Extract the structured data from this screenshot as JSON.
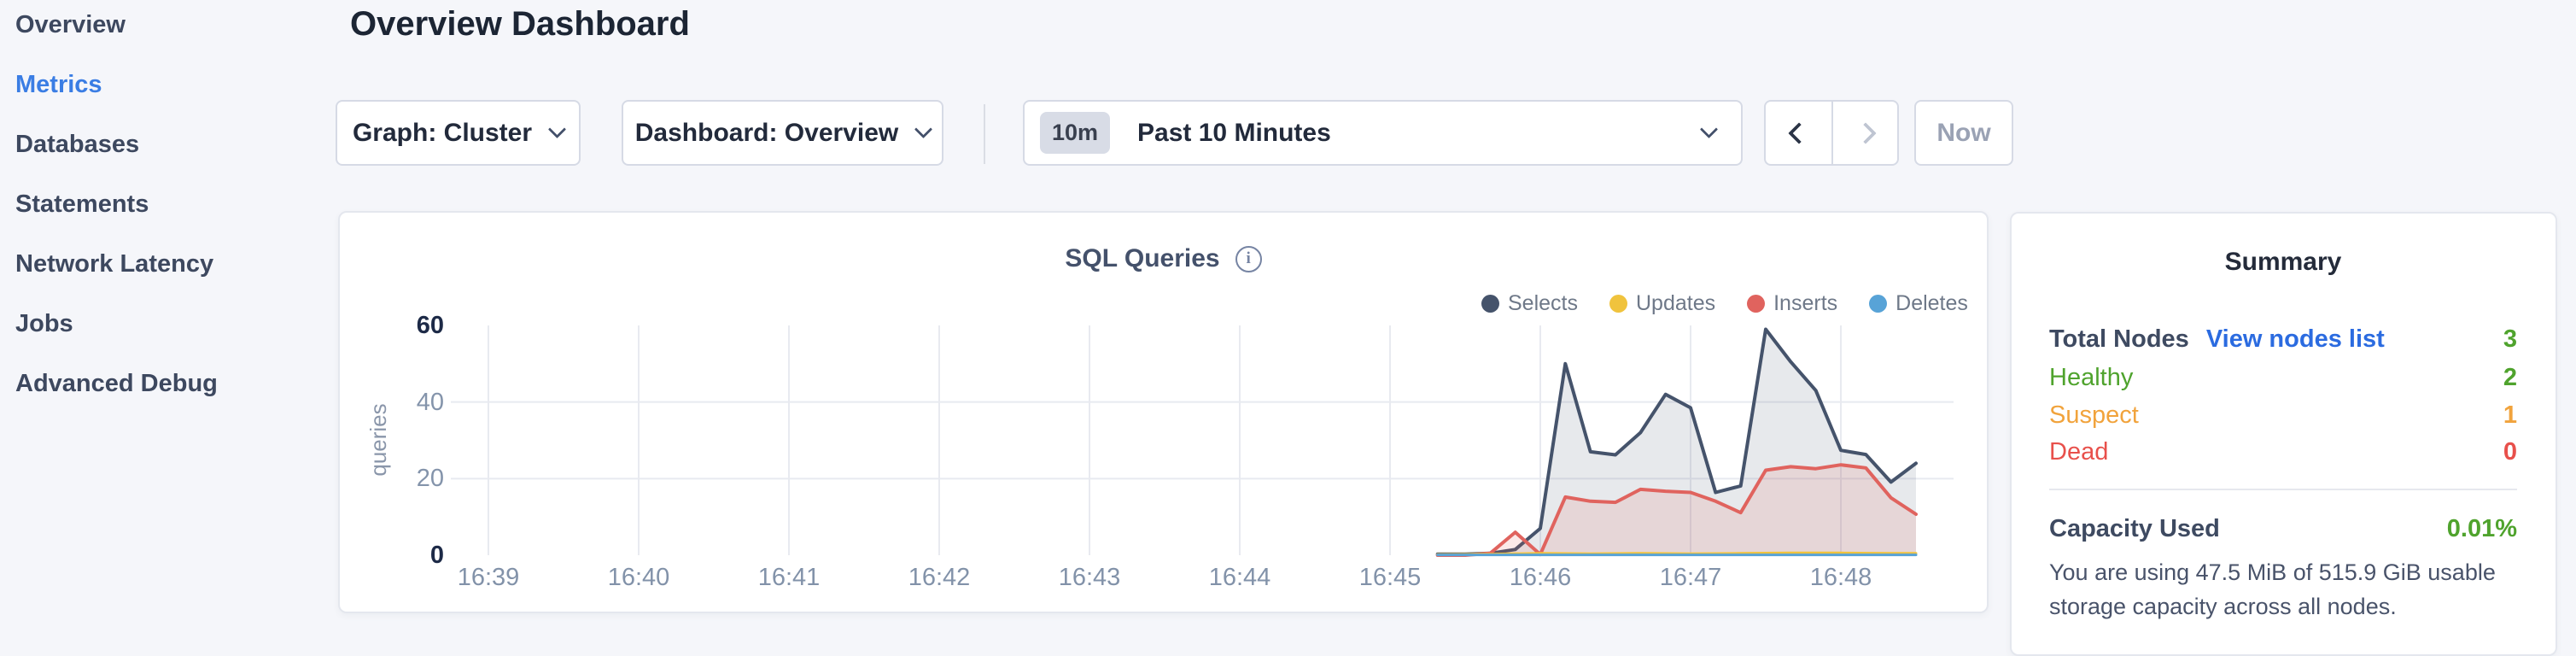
{
  "sidebar": {
    "items": [
      {
        "label": "Overview",
        "active": false
      },
      {
        "label": "Metrics",
        "active": true
      },
      {
        "label": "Databases",
        "active": false
      },
      {
        "label": "Statements",
        "active": false
      },
      {
        "label": "Network Latency",
        "active": false
      },
      {
        "label": "Jobs",
        "active": false
      },
      {
        "label": "Advanced Debug",
        "active": false
      }
    ]
  },
  "header": {
    "title": "Overview Dashboard"
  },
  "toolbar": {
    "graph_dropdown": {
      "label": "Graph:",
      "value": "Cluster"
    },
    "dashboard_dropdown": {
      "label": "Dashboard:",
      "value": "Overview"
    },
    "time_selector": {
      "badge": "10m",
      "value": "Past 10 Minutes"
    },
    "now_button": "Now"
  },
  "chart_data": {
    "type": "area",
    "title": "SQL Queries",
    "ylabel": "queries",
    "ylim": [
      0,
      60
    ],
    "grid": true,
    "legend_position": "top-right",
    "xticks": [
      "16:39",
      "16:40",
      "16:41",
      "16:42",
      "16:43",
      "16:44",
      "16:45",
      "16:46",
      "16:47",
      "16:48"
    ],
    "yticks": [
      {
        "v": 0,
        "strong": true
      },
      {
        "v": 20,
        "strong": false
      },
      {
        "v": 40,
        "strong": false
      },
      {
        "v": 60,
        "strong": true
      }
    ],
    "x_window_seconds": [
      -15,
      585
    ],
    "tick_interval_seconds": 60,
    "draw_order": [
      0,
      2,
      1,
      3
    ],
    "series": [
      {
        "name": "Selects",
        "color": "#45536b",
        "fill": "rgba(69,83,107,0.13)",
        "width": 4,
        "points": [
          [
            379,
            0.3
          ],
          [
            390,
            0.3
          ],
          [
            400,
            0.5
          ],
          [
            410,
            1.5
          ],
          [
            420,
            7
          ],
          [
            430,
            50
          ],
          [
            440,
            27
          ],
          [
            450,
            26.2
          ],
          [
            460,
            32
          ],
          [
            470,
            42
          ],
          [
            480,
            38.5
          ],
          [
            490,
            16.4
          ],
          [
            500,
            18.1
          ],
          [
            510,
            59
          ],
          [
            520,
            50.5
          ],
          [
            530,
            43
          ],
          [
            540,
            27.4
          ],
          [
            550,
            26.3
          ],
          [
            560,
            19.1
          ],
          [
            570,
            24
          ]
        ]
      },
      {
        "name": "Updates",
        "color": "#f0c33d",
        "fill": "none",
        "width": 3,
        "points": [
          [
            379,
            0.2
          ],
          [
            400,
            0.3
          ],
          [
            420,
            0.5
          ],
          [
            440,
            0.4
          ],
          [
            460,
            0.5
          ],
          [
            480,
            0.4
          ],
          [
            500,
            0.5
          ],
          [
            520,
            0.6
          ],
          [
            540,
            0.6
          ],
          [
            560,
            0.5
          ],
          [
            570,
            0.5
          ]
        ]
      },
      {
        "name": "Inserts",
        "color": "#e0635e",
        "fill": "rgba(224,99,94,0.14)",
        "width": 4,
        "points": [
          [
            379,
            0
          ],
          [
            390,
            0
          ],
          [
            400,
            0.5
          ],
          [
            410,
            6
          ],
          [
            420,
            0.2
          ],
          [
            430,
            15.2
          ],
          [
            440,
            14.1
          ],
          [
            450,
            13.8
          ],
          [
            460,
            17.2
          ],
          [
            470,
            16.7
          ],
          [
            480,
            16.4
          ],
          [
            490,
            14.1
          ],
          [
            500,
            11.1
          ],
          [
            510,
            22.2
          ],
          [
            520,
            23.1
          ],
          [
            530,
            22.6
          ],
          [
            540,
            23.6
          ],
          [
            550,
            22.8
          ],
          [
            560,
            15
          ],
          [
            570,
            10.7
          ]
        ]
      },
      {
        "name": "Deletes",
        "color": "#58a3d7",
        "fill": "none",
        "width": 3,
        "points": [
          [
            379,
            0.1
          ],
          [
            570,
            0.1
          ]
        ]
      }
    ]
  },
  "summary": {
    "title": "Summary",
    "rows": [
      {
        "label": "Total Nodes",
        "bold": true,
        "label_color": "#3e4a61",
        "link": "View nodes list",
        "value": "3",
        "value_color": "#4fa32d"
      },
      {
        "label": "Healthy",
        "bold": false,
        "label_color": "#4fa32d",
        "link": null,
        "value": "2",
        "value_color": "#4fa32d"
      },
      {
        "label": "Suspect",
        "bold": false,
        "label_color": "#f1a33c",
        "link": null,
        "value": "1",
        "value_color": "#f1a33c"
      },
      {
        "label": "Dead",
        "bold": false,
        "label_color": "#e8504b",
        "link": null,
        "value": "0",
        "value_color": "#e8504b"
      }
    ],
    "capacity": {
      "label": "Capacity Used",
      "value": "0.01%",
      "value_color": "#4fa32d",
      "description": "You are using 47.5 MiB of 515.9 GiB usable storage capacity across all nodes."
    }
  }
}
